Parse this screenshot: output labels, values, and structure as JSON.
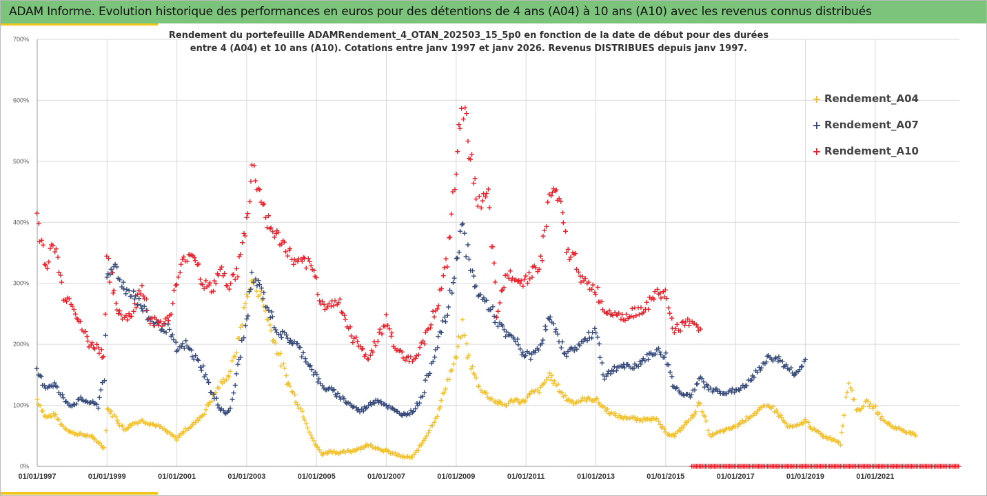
{
  "header": {
    "title": "ADAM Informe. Evolution historique des performances en euros pour des détentions de 4 ans (A04) à 10 ans (A10) avec les revenus connus distribués"
  },
  "colors": {
    "header_bg": "#7cc47c",
    "accent": "#f0c419",
    "A04": "#f2c12e",
    "A07": "#34497a",
    "A10": "#e8202a"
  },
  "chart_data": {
    "type": "scatter",
    "title_lines": [
      "Rendement du portefeuille ADAMRendement_4_OTAN_202503_15_5p0  en fonction de la date de début pour des durées",
      "entre 4 (A04) et 10 ans (A10). Cotations entre janv 1997 et janv 2026. Revenus DISTRIBUES depuis janv 1997."
    ],
    "marker": "+",
    "x_start": "1997-01-01",
    "x_end": "2023-06-01",
    "x_tick_labels": [
      "01/01/1997",
      "01/01/1999",
      "01/01/2001",
      "01/01/2003",
      "01/01/2005",
      "01/01/2007",
      "01/01/2009",
      "01/01/2011",
      "01/01/2013",
      "01/01/2015",
      "01/01/2017",
      "01/01/2019",
      "01/01/2021"
    ],
    "y_tick_labels": [
      "0%",
      "100%",
      "200%",
      "300%",
      "400%",
      "500%",
      "600%",
      "700%"
    ],
    "ylim": [
      0,
      700
    ],
    "y_unit": "%",
    "grid": true,
    "legend_position": "right",
    "series": [
      {
        "name": "Rendement_A04",
        "color": "#f2c12e",
        "points": [
          [
            "1997-01",
            110
          ],
          [
            "1997-04",
            80
          ],
          [
            "1997-07",
            85
          ],
          [
            "1997-10",
            65
          ],
          [
            "1998-01",
            55
          ],
          [
            "1998-04",
            52
          ],
          [
            "1998-07",
            50
          ],
          [
            "1998-10",
            40
          ],
          [
            "1998-12",
            30
          ],
          [
            "1999-01",
            95
          ],
          [
            "1999-04",
            80
          ],
          [
            "1999-07",
            60
          ],
          [
            "1999-10",
            70
          ],
          [
            "2000-01",
            75
          ],
          [
            "2000-04",
            70
          ],
          [
            "2000-07",
            65
          ],
          [
            "2000-10",
            55
          ],
          [
            "2001-01",
            45
          ],
          [
            "2001-04",
            60
          ],
          [
            "2001-07",
            70
          ],
          [
            "2001-10",
            85
          ],
          [
            "2002-01",
            110
          ],
          [
            "2002-04",
            135
          ],
          [
            "2002-07",
            150
          ],
          [
            "2002-10",
            200
          ],
          [
            "2003-01",
            280
          ],
          [
            "2003-03",
            305
          ],
          [
            "2003-06",
            280
          ],
          [
            "2003-09",
            230
          ],
          [
            "2003-12",
            185
          ],
          [
            "2004-03",
            140
          ],
          [
            "2004-06",
            110
          ],
          [
            "2004-09",
            80
          ],
          [
            "2004-12",
            40
          ],
          [
            "2005-03",
            20
          ],
          [
            "2005-06",
            25
          ],
          [
            "2005-09",
            22
          ],
          [
            "2006-01",
            25
          ],
          [
            "2006-04",
            30
          ],
          [
            "2006-07",
            35
          ],
          [
            "2006-10",
            30
          ],
          [
            "2007-01",
            25
          ],
          [
            "2007-04",
            20
          ],
          [
            "2007-07",
            15
          ],
          [
            "2007-10",
            15
          ],
          [
            "2008-01",
            35
          ],
          [
            "2008-04",
            60
          ],
          [
            "2008-07",
            90
          ],
          [
            "2008-10",
            140
          ],
          [
            "2009-01",
            180
          ],
          [
            "2009-03",
            230
          ],
          [
            "2009-06",
            165
          ],
          [
            "2009-09",
            130
          ],
          [
            "2009-12",
            115
          ],
          [
            "2010-03",
            105
          ],
          [
            "2010-06",
            100
          ],
          [
            "2010-09",
            110
          ],
          [
            "2010-12",
            105
          ],
          [
            "2011-03",
            120
          ],
          [
            "2011-06",
            125
          ],
          [
            "2011-09",
            150
          ],
          [
            "2011-12",
            130
          ],
          [
            "2012-03",
            110
          ],
          [
            "2012-06",
            105
          ],
          [
            "2012-09",
            110
          ],
          [
            "2013-01",
            110
          ],
          [
            "2013-04",
            95
          ],
          [
            "2013-07",
            85
          ],
          [
            "2013-10",
            80
          ],
          [
            "2014-01",
            80
          ],
          [
            "2014-04",
            75
          ],
          [
            "2014-07",
            80
          ],
          [
            "2014-10",
            75
          ],
          [
            "2015-01",
            55
          ],
          [
            "2015-04",
            50
          ],
          [
            "2015-07",
            65
          ],
          [
            "2015-10",
            80
          ],
          [
            "2016-01",
            105
          ],
          [
            "2016-04",
            50
          ],
          [
            "2016-07",
            55
          ],
          [
            "2016-10",
            60
          ],
          [
            "2017-01",
            65
          ],
          [
            "2017-04",
            75
          ],
          [
            "2017-07",
            85
          ],
          [
            "2017-10",
            95
          ],
          [
            "2018-01",
            100
          ],
          [
            "2018-04",
            85
          ],
          [
            "2018-07",
            65
          ],
          [
            "2018-10",
            65
          ],
          [
            "2019-01",
            75
          ],
          [
            "2019-04",
            60
          ],
          [
            "2019-07",
            50
          ],
          [
            "2019-10",
            45
          ],
          [
            "2020-01",
            40
          ],
          [
            "2020-04",
            140
          ],
          [
            "2020-07",
            90
          ],
          [
            "2020-10",
            105
          ],
          [
            "2021-01",
            95
          ],
          [
            "2021-04",
            75
          ],
          [
            "2021-07",
            65
          ],
          [
            "2021-10",
            60
          ],
          [
            "2022-01",
            55
          ],
          [
            "2022-03",
            50
          ]
        ]
      },
      {
        "name": "Rendement_A07",
        "color": "#34497a",
        "points": [
          [
            "1997-01",
            155
          ],
          [
            "1997-04",
            130
          ],
          [
            "1997-07",
            135
          ],
          [
            "1997-10",
            110
          ],
          [
            "1998-01",
            100
          ],
          [
            "1998-04",
            110
          ],
          [
            "1998-07",
            105
          ],
          [
            "1998-10",
            100
          ],
          [
            "1998-12",
            150
          ],
          [
            "1999-01",
            300
          ],
          [
            "1999-04",
            330
          ],
          [
            "1999-07",
            290
          ],
          [
            "1999-10",
            285
          ],
          [
            "2000-01",
            260
          ],
          [
            "2000-04",
            240
          ],
          [
            "2000-07",
            230
          ],
          [
            "2000-10",
            225
          ],
          [
            "2001-01",
            190
          ],
          [
            "2001-04",
            200
          ],
          [
            "2001-07",
            180
          ],
          [
            "2001-10",
            160
          ],
          [
            "2002-01",
            120
          ],
          [
            "2002-04",
            95
          ],
          [
            "2002-07",
            85
          ],
          [
            "2002-10",
            160
          ],
          [
            "2003-01",
            240
          ],
          [
            "2003-03",
            310
          ],
          [
            "2003-06",
            290
          ],
          [
            "2003-09",
            250
          ],
          [
            "2003-12",
            220
          ],
          [
            "2004-03",
            210
          ],
          [
            "2004-06",
            200
          ],
          [
            "2004-09",
            180
          ],
          [
            "2004-12",
            155
          ],
          [
            "2005-03",
            130
          ],
          [
            "2005-06",
            125
          ],
          [
            "2005-09",
            115
          ],
          [
            "2006-01",
            100
          ],
          [
            "2006-04",
            90
          ],
          [
            "2006-07",
            100
          ],
          [
            "2006-10",
            110
          ],
          [
            "2007-01",
            100
          ],
          [
            "2007-04",
            90
          ],
          [
            "2007-07",
            85
          ],
          [
            "2007-10",
            90
          ],
          [
            "2008-01",
            110
          ],
          [
            "2008-04",
            160
          ],
          [
            "2008-07",
            210
          ],
          [
            "2008-10",
            250
          ],
          [
            "2009-01",
            330
          ],
          [
            "2009-03",
            400
          ],
          [
            "2009-06",
            320
          ],
          [
            "2009-09",
            280
          ],
          [
            "2009-12",
            265
          ],
          [
            "2010-03",
            240
          ],
          [
            "2010-06",
            215
          ],
          [
            "2010-09",
            210
          ],
          [
            "2010-12",
            185
          ],
          [
            "2011-03",
            180
          ],
          [
            "2011-06",
            200
          ],
          [
            "2011-09",
            245
          ],
          [
            "2011-12",
            210
          ],
          [
            "2012-03",
            185
          ],
          [
            "2012-06",
            195
          ],
          [
            "2012-09",
            205
          ],
          [
            "2013-01",
            225
          ],
          [
            "2013-04",
            145
          ],
          [
            "2013-07",
            160
          ],
          [
            "2013-10",
            165
          ],
          [
            "2014-01",
            160
          ],
          [
            "2014-04",
            170
          ],
          [
            "2014-07",
            180
          ],
          [
            "2014-10",
            190
          ],
          [
            "2015-01",
            180
          ],
          [
            "2015-04",
            130
          ],
          [
            "2015-07",
            120
          ],
          [
            "2015-10",
            115
          ],
          [
            "2016-01",
            145
          ],
          [
            "2016-04",
            125
          ],
          [
            "2016-07",
            125
          ],
          [
            "2016-10",
            120
          ],
          [
            "2017-01",
            125
          ],
          [
            "2017-04",
            130
          ],
          [
            "2017-07",
            145
          ],
          [
            "2017-10",
            165
          ],
          [
            "2018-01",
            180
          ],
          [
            "2018-04",
            175
          ],
          [
            "2018-07",
            160
          ],
          [
            "2018-10",
            150
          ],
          [
            "2019-01",
            175
          ]
        ]
      },
      {
        "name": "Rendement_A10",
        "color": "#e8202a",
        "points": [
          [
            "1997-01",
            410
          ],
          [
            "1997-04",
            330
          ],
          [
            "1997-07",
            365
          ],
          [
            "1997-10",
            280
          ],
          [
            "1998-01",
            270
          ],
          [
            "1998-04",
            230
          ],
          [
            "1998-07",
            200
          ],
          [
            "1998-10",
            195
          ],
          [
            "1998-12",
            180
          ],
          [
            "1999-01",
            345
          ],
          [
            "1999-04",
            260
          ],
          [
            "1999-07",
            245
          ],
          [
            "1999-10",
            250
          ],
          [
            "2000-01",
            300
          ],
          [
            "2000-04",
            240
          ],
          [
            "2000-07",
            235
          ],
          [
            "2000-10",
            240
          ],
          [
            "2001-01",
            300
          ],
          [
            "2001-04",
            345
          ],
          [
            "2001-07",
            350
          ],
          [
            "2001-10",
            300
          ],
          [
            "2002-01",
            290
          ],
          [
            "2002-04",
            320
          ],
          [
            "2002-07",
            300
          ],
          [
            "2002-10",
            320
          ],
          [
            "2003-01",
            400
          ],
          [
            "2003-03",
            490
          ],
          [
            "2003-06",
            440
          ],
          [
            "2003-09",
            390
          ],
          [
            "2003-12",
            375
          ],
          [
            "2004-03",
            355
          ],
          [
            "2004-06",
            330
          ],
          [
            "2004-09",
            335
          ],
          [
            "2004-12",
            320
          ],
          [
            "2005-03",
            265
          ],
          [
            "2005-06",
            265
          ],
          [
            "2005-09",
            270
          ],
          [
            "2006-01",
            210
          ],
          [
            "2006-04",
            200
          ],
          [
            "2006-07",
            175
          ],
          [
            "2006-10",
            210
          ],
          [
            "2007-01",
            240
          ],
          [
            "2007-04",
            195
          ],
          [
            "2007-07",
            180
          ],
          [
            "2007-10",
            175
          ],
          [
            "2008-01",
            195
          ],
          [
            "2008-04",
            235
          ],
          [
            "2008-07",
            270
          ],
          [
            "2008-10",
            340
          ],
          [
            "2009-01",
            480
          ],
          [
            "2009-03",
            600
          ],
          [
            "2009-06",
            510
          ],
          [
            "2009-09",
            430
          ],
          [
            "2009-12",
            440
          ],
          [
            "2010-03",
            245
          ],
          [
            "2010-06",
            310
          ],
          [
            "2010-09",
            315
          ],
          [
            "2010-12",
            300
          ],
          [
            "2011-03",
            320
          ],
          [
            "2011-06",
            330
          ],
          [
            "2011-09",
            440
          ],
          [
            "2011-12",
            455
          ],
          [
            "2012-03",
            350
          ],
          [
            "2012-06",
            340
          ],
          [
            "2012-09",
            300
          ],
          [
            "2013-01",
            290
          ],
          [
            "2013-04",
            255
          ],
          [
            "2013-07",
            255
          ],
          [
            "2013-10",
            245
          ],
          [
            "2014-01",
            250
          ],
          [
            "2014-04",
            255
          ],
          [
            "2014-07",
            265
          ],
          [
            "2014-10",
            285
          ],
          [
            "2015-01",
            280
          ],
          [
            "2015-04",
            225
          ],
          [
            "2015-07",
            230
          ],
          [
            "2015-10",
            240
          ],
          [
            "2016-01",
            225
          ]
        ]
      },
      {
        "name": "Rendement_A10",
        "color": "#e8202a",
        "note_range": [
          "2015-10",
          "2023-06"
        ],
        "constant_value": 0
      }
    ]
  }
}
